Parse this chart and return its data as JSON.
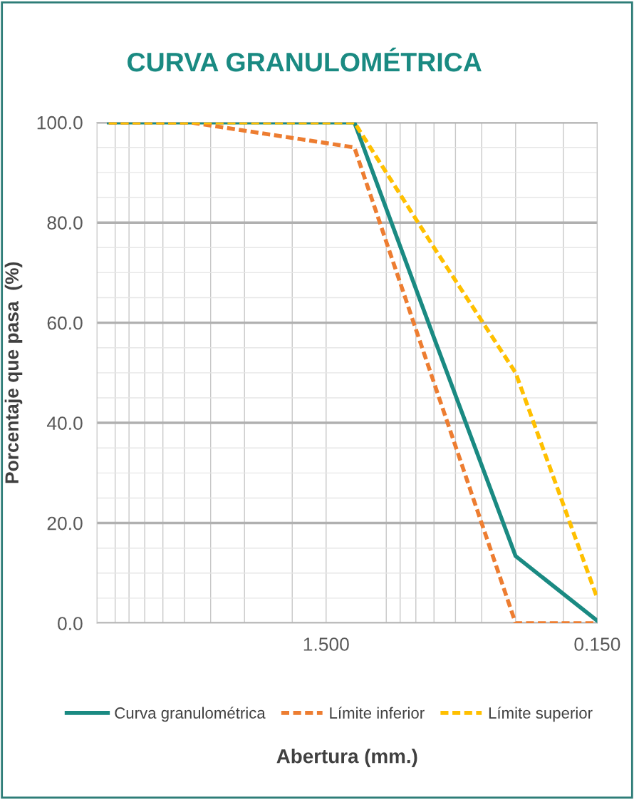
{
  "chart_data": {
    "type": "line",
    "title": "CURVA GRANULOMÉTRICA",
    "xlabel": "Abertura (mm.)",
    "ylabel": "Porcentaje que pasa  (%)",
    "x": [
      9.5,
      4.75,
      2.36,
      1.18,
      0.6,
      0.3,
      0.15
    ],
    "series": [
      {
        "name": "Curva granulométrica",
        "color": "#1a8a82",
        "values": [
          100,
          100,
          100,
          100,
          57,
          13.4,
          0.5
        ],
        "line_style": "solid"
      },
      {
        "name": "Límite inferior",
        "color": "#ed7d31",
        "values": [
          100,
          100,
          97.5,
          95,
          48,
          0,
          0
        ],
        "line_style": "dashed"
      },
      {
        "name": "Límite superior",
        "color": "#ffc000",
        "values": [
          100,
          100,
          100,
          100,
          75,
          50,
          5
        ],
        "line_style": "dashed"
      }
    ],
    "log": "x",
    "xlim": [
      10.5,
      0.15
    ],
    "xticks": [
      {
        "value": 1.5,
        "label": "1.500"
      },
      {
        "value": 0.15,
        "label": "0.150"
      }
    ],
    "ylim": [
      0,
      100
    ],
    "yticks": [
      {
        "value": 0,
        "label": "0.0"
      },
      {
        "value": 20,
        "label": "20.0"
      },
      {
        "value": 40,
        "label": "40.0"
      },
      {
        "value": 60,
        "label": "60.0"
      },
      {
        "value": 80,
        "label": "80.0"
      },
      {
        "value": 100,
        "label": "100.0"
      }
    ],
    "grid": true,
    "legend": "bottom",
    "marker": "none"
  }
}
